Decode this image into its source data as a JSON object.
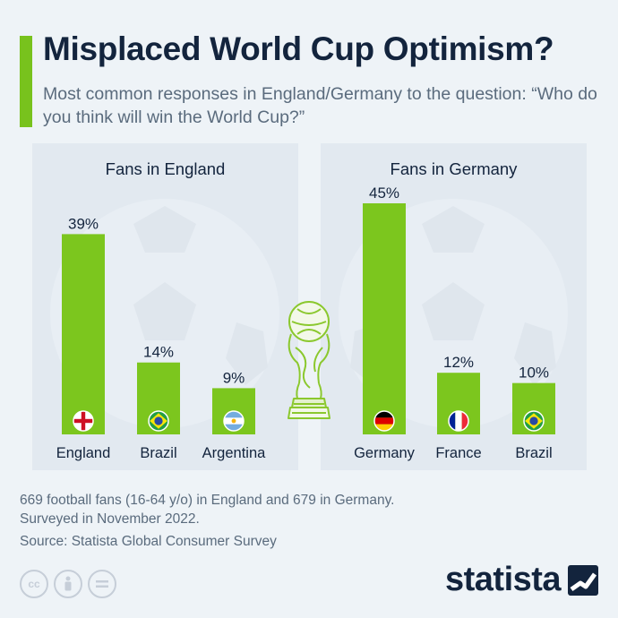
{
  "header": {
    "title": "Misplaced World Cup Optimism?",
    "subtitle": "Most common responses in England/Germany to the question: “Who do you think will win the World Cup?”"
  },
  "chart_data": [
    {
      "type": "bar",
      "title": "Fans in England",
      "categories": [
        "England",
        "Brazil",
        "Argentina"
      ],
      "values": [
        39,
        14,
        9
      ],
      "value_labels": [
        "39%",
        "14%",
        "9%"
      ],
      "flags": [
        "england-flag-icon",
        "brazil-flag-icon",
        "argentina-flag-icon"
      ],
      "unit": "%",
      "ylim": [
        0,
        45
      ],
      "grid": false
    },
    {
      "type": "bar",
      "title": "Fans in Germany",
      "categories": [
        "Germany",
        "France",
        "Brazil"
      ],
      "values": [
        45,
        12,
        10
      ],
      "value_labels": [
        "45%",
        "12%",
        "10%"
      ],
      "flags": [
        "germany-flag-icon",
        "france-flag-icon",
        "brazil-flag-icon"
      ],
      "unit": "%",
      "ylim": [
        0,
        45
      ],
      "grid": false
    }
  ],
  "colors": {
    "bar": "#7cc61e",
    "title": "#13243d",
    "text_secondary": "#5a6b7d",
    "panel": "#e2e9f0",
    "background": "#eef3f7"
  },
  "footer": {
    "note_line1": "669 football fans (16-64 y/o) in England and 679 in Germany.",
    "note_line2": "Surveyed in November 2022.",
    "source": "Source: Statista Global Consumer Survey",
    "brand": "statista",
    "license_icons": [
      "cc-icon",
      "attribution-icon",
      "no-derivatives-icon"
    ]
  }
}
